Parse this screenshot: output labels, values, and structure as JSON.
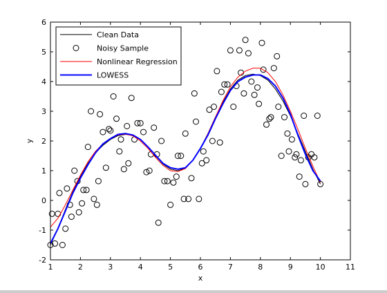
{
  "chart_data": {
    "type": "line",
    "title": "",
    "xlabel": "x",
    "ylabel": "y",
    "xlim": [
      1,
      11
    ],
    "ylim": [
      -2,
      6
    ],
    "xticks": [
      "1",
      "2",
      "3",
      "4",
      "5",
      "6",
      "7",
      "8",
      "9",
      "10",
      "11"
    ],
    "yticks": [
      "-2",
      "-1",
      "0",
      "1",
      "2",
      "3",
      "4",
      "5",
      "6"
    ],
    "grid": false,
    "legend_position": "top-left",
    "series": [
      {
        "name": "Clean Data",
        "kind": "line",
        "color": "#000000",
        "x": [
          1.0,
          1.25,
          1.5,
          1.75,
          2.0,
          2.25,
          2.5,
          2.75,
          3.0,
          3.25,
          3.5,
          3.75,
          4.0,
          4.25,
          4.5,
          4.75,
          5.0,
          5.25,
          5.5,
          5.75,
          6.0,
          6.25,
          6.5,
          6.75,
          7.0,
          7.25,
          7.5,
          7.75,
          8.0,
          8.25,
          8.5,
          8.75,
          9.0,
          9.25,
          9.5,
          9.75,
          10.0
        ],
        "y": [
          -1.5,
          -0.95,
          -0.3,
          0.3,
          0.8,
          1.25,
          1.6,
          1.85,
          2.05,
          2.18,
          2.22,
          2.2,
          2.05,
          1.8,
          1.5,
          1.22,
          1.05,
          1.0,
          1.08,
          1.35,
          1.75,
          2.25,
          2.8,
          3.3,
          3.75,
          4.05,
          4.2,
          4.25,
          4.2,
          4.05,
          3.75,
          3.35,
          2.85,
          2.25,
          1.65,
          1.05,
          0.55
        ]
      },
      {
        "name": "Noisy Sample",
        "kind": "markers",
        "color": "#000000",
        "x": [
          1.0,
          1.05,
          1.15,
          1.25,
          1.3,
          1.4,
          1.5,
          1.55,
          1.65,
          1.7,
          1.8,
          1.9,
          1.95,
          2.05,
          2.1,
          2.2,
          2.25,
          2.35,
          2.45,
          2.55,
          2.6,
          2.65,
          2.75,
          2.85,
          2.95,
          3.0,
          3.1,
          3.2,
          3.3,
          3.35,
          3.45,
          3.55,
          3.6,
          3.7,
          3.8,
          3.9,
          4.0,
          4.1,
          4.2,
          4.3,
          4.35,
          4.45,
          4.55,
          4.6,
          4.7,
          4.8,
          4.9,
          5.0,
          5.1,
          5.2,
          5.25,
          5.35,
          5.45,
          5.5,
          5.6,
          5.7,
          5.8,
          5.85,
          5.95,
          6.05,
          6.1,
          6.2,
          6.3,
          6.4,
          6.45,
          6.55,
          6.65,
          6.7,
          6.8,
          6.9,
          7.0,
          7.1,
          7.2,
          7.3,
          7.35,
          7.45,
          7.5,
          7.6,
          7.7,
          7.8,
          7.9,
          7.95,
          8.05,
          8.1,
          8.2,
          8.3,
          8.35,
          8.45,
          8.55,
          8.6,
          8.7,
          8.8,
          8.9,
          8.95,
          9.05,
          9.15,
          9.2,
          9.3,
          9.35,
          9.45,
          9.5,
          9.6,
          9.7,
          9.8,
          9.9,
          10.0
        ],
        "y": [
          -1.5,
          -0.45,
          -1.45,
          -0.45,
          0.25,
          -1.5,
          -0.95,
          0.4,
          -0.15,
          -0.55,
          1.0,
          0.65,
          -0.4,
          -0.1,
          0.35,
          0.35,
          1.8,
          3.0,
          0.05,
          -0.15,
          0.65,
          2.9,
          2.3,
          1.1,
          2.4,
          2.35,
          3.5,
          2.75,
          1.65,
          2.05,
          1.05,
          2.5,
          1.25,
          3.45,
          2.05,
          2.6,
          2.6,
          2.3,
          0.95,
          1.0,
          1.55,
          2.45,
          1.55,
          -0.75,
          2.0,
          0.65,
          0.65,
          -0.15,
          0.6,
          0.8,
          1.5,
          1.5,
          0.05,
          2.25,
          0.05,
          0.75,
          3.6,
          2.65,
          0.05,
          1.25,
          1.65,
          1.35,
          3.05,
          2.0,
          3.15,
          4.35,
          1.95,
          3.65,
          3.9,
          3.9,
          5.05,
          3.15,
          3.85,
          5.05,
          4.3,
          3.6,
          5.4,
          4.95,
          4.0,
          3.55,
          3.8,
          3.25,
          5.3,
          4.4,
          2.55,
          2.75,
          2.8,
          4.45,
          4.85,
          3.15,
          1.5,
          2.8,
          2.25,
          1.65,
          2.05,
          1.45,
          1.55,
          0.8,
          1.35,
          2.85,
          0.55,
          1.45,
          1.55,
          1.45,
          2.85,
          0.55
        ]
      },
      {
        "name": "Nonlinear Regression",
        "kind": "line",
        "color": "#ff0000",
        "x": [
          1.0,
          1.25,
          1.5,
          1.75,
          2.0,
          2.25,
          2.5,
          2.75,
          3.0,
          3.25,
          3.5,
          3.75,
          4.0,
          4.25,
          4.5,
          4.75,
          5.0,
          5.25,
          5.5,
          5.75,
          6.0,
          6.25,
          6.5,
          6.75,
          7.0,
          7.25,
          7.5,
          7.75,
          8.0,
          8.25,
          8.5,
          8.75,
          9.0,
          9.25,
          9.5,
          9.75,
          10.0
        ],
        "y": [
          -0.9,
          -0.6,
          -0.15,
          0.35,
          0.85,
          1.3,
          1.65,
          1.9,
          2.08,
          2.2,
          2.23,
          2.17,
          2.0,
          1.75,
          1.45,
          1.18,
          1.0,
          0.97,
          1.07,
          1.35,
          1.75,
          2.25,
          2.8,
          3.35,
          3.82,
          4.15,
          4.35,
          4.45,
          4.45,
          4.3,
          4.0,
          3.55,
          3.0,
          2.4,
          1.75,
          1.15,
          0.6
        ]
      },
      {
        "name": "LOWESS",
        "kind": "line",
        "color": "#0000ff",
        "x": [
          1.0,
          1.25,
          1.5,
          1.75,
          2.0,
          2.25,
          2.5,
          2.75,
          3.0,
          3.25,
          3.5,
          3.75,
          4.0,
          4.25,
          4.5,
          4.75,
          5.0,
          5.25,
          5.5,
          5.75,
          6.0,
          6.25,
          6.5,
          6.75,
          7.0,
          7.25,
          7.5,
          7.75,
          8.0,
          8.25,
          8.5,
          8.75,
          9.0,
          9.25,
          9.5,
          9.75,
          10.0
        ],
        "y": [
          -1.45,
          -0.95,
          -0.35,
          0.25,
          0.75,
          1.2,
          1.6,
          1.9,
          2.08,
          2.22,
          2.25,
          2.2,
          2.05,
          1.8,
          1.52,
          1.25,
          1.1,
          1.05,
          1.1,
          1.35,
          1.75,
          2.2,
          2.75,
          3.25,
          3.7,
          4.0,
          4.15,
          4.22,
          4.22,
          4.1,
          3.85,
          3.45,
          2.9,
          2.2,
          1.55,
          1.0,
          0.65
        ]
      }
    ]
  }
}
